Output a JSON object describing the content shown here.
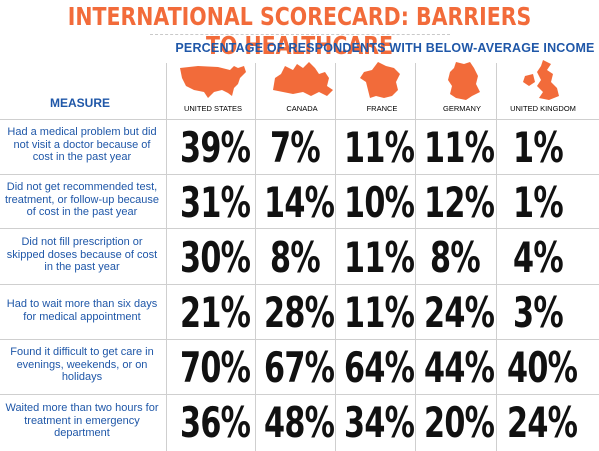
{
  "title": "INTERNATIONAL SCORECARD:  BARRIERS TO HEALTHCARE",
  "colors": {
    "title": "#f26b3a",
    "subtitle": "#1f57a8",
    "measure_text": "#1f57a8",
    "map_fill": "#f26b3a",
    "values": "#111111"
  },
  "chart_data": {
    "type": "table",
    "title": "INTERNATIONAL SCORECARD:  BARRIERS TO HEALTHCARE",
    "subtitle": "PERCENTAGE OF RESPONDENTS WITH BELOW-AVERAGE INCOME",
    "row_header": "MEASURE",
    "columns": [
      "UNITED STATES",
      "CANADA",
      "FRANCE",
      "GERMANY",
      "UNITED KINGDOM"
    ],
    "column_icons": [
      "usa-map-icon",
      "canada-map-icon",
      "france-map-icon",
      "germany-map-icon",
      "uk-map-icon"
    ],
    "rows": [
      {
        "measure": "Had a medical problem but did not visit a doctor because of cost in the past year",
        "values": [
          "39%",
          "7%",
          "11%",
          "11%",
          "1%"
        ]
      },
      {
        "measure": "Did not get recommended test, treatment, or follow-up because of cost in the past year",
        "values": [
          "31%",
          "14%",
          "10%",
          "12%",
          "1%"
        ]
      },
      {
        "measure": "Did not fill prescription or skipped doses because of cost in the past year",
        "values": [
          "30%",
          "8%",
          "11%",
          "8%",
          "4%"
        ]
      },
      {
        "measure": "Had to wait more than six days for medical appointment",
        "values": [
          "21%",
          "28%",
          "11%",
          "24%",
          "3%"
        ]
      },
      {
        "measure": "Found it difficult to get care in evenings, weekends, or on holidays",
        "values": [
          "70%",
          "67%",
          "64%",
          "44%",
          "40%"
        ]
      },
      {
        "measure": "Waited more than two hours for treatment in emergency department",
        "values": [
          "36%",
          "48%",
          "34%",
          "20%",
          "24%"
        ]
      }
    ]
  }
}
